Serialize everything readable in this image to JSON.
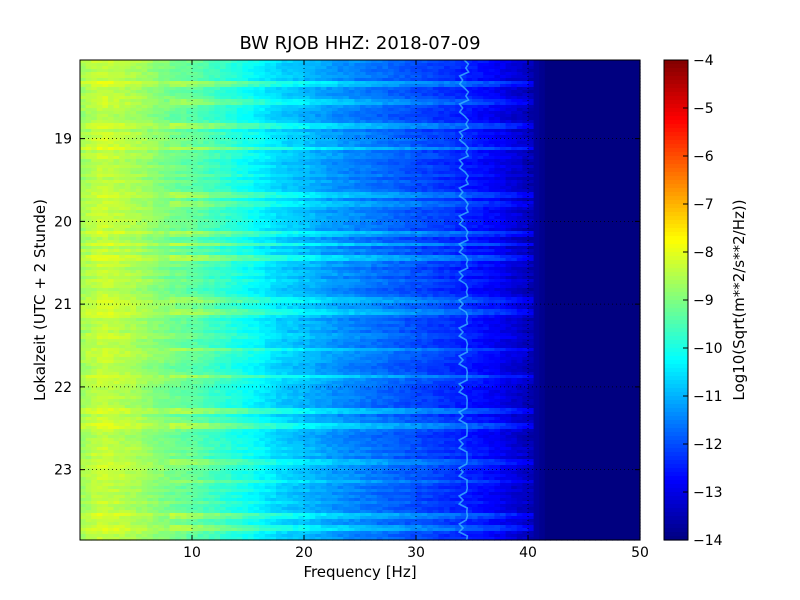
{
  "chart_data": {
    "type": "heatmap",
    "title": "BW RJOB HHZ: 2018-07-09",
    "xlabel": "Frequency [Hz]",
    "ylabel": "Lokalzeit (UTC + 2 Stunde)",
    "xlim": [
      0,
      50
    ],
    "ylim": [
      18.05,
      23.85
    ],
    "y_inverted": true,
    "x_ticks": [
      10,
      20,
      30,
      40,
      50
    ],
    "x_tick_labels": [
      "10",
      "20",
      "30",
      "40",
      "50"
    ],
    "y_ticks": [
      19,
      20,
      21,
      22,
      23
    ],
    "y_tick_labels": [
      "19",
      "20",
      "21",
      "22",
      "23"
    ],
    "grid": true,
    "colormap": "jet",
    "colorbar": {
      "label": "Log10(Sqrt(m**2/s**2/Hz))",
      "range": [
        -14,
        -4
      ],
      "ticks": [
        -4,
        -5,
        -6,
        -7,
        -8,
        -9,
        -10,
        -11,
        -12,
        -13,
        -14
      ],
      "tick_labels": [
        "−4",
        "−5",
        "−6",
        "−7",
        "−8",
        "−9",
        "−10",
        "−11",
        "−12",
        "−13",
        "−14"
      ]
    },
    "spectrum_profile": {
      "frequency_hz": [
        0,
        2,
        5,
        8,
        10,
        13,
        16,
        18,
        20,
        22,
        25,
        28,
        31,
        34,
        37,
        40,
        41,
        42,
        50
      ],
      "log10_amplitude": [
        -8.7,
        -8.3,
        -8.6,
        -9.1,
        -9.3,
        -9.8,
        -10.3,
        -10.7,
        -10.9,
        -11.2,
        -11.5,
        -11.8,
        -12.1,
        -12.4,
        -12.8,
        -13.4,
        -13.8,
        -14.0,
        -14.0
      ]
    },
    "tonal_line": {
      "frequency_hz": 34.3,
      "note": "wandering narrow spectral line near 34 Hz"
    },
    "broadband_bursts_local_hour": [
      18.35,
      18.55,
      18.85,
      19.12,
      19.68,
      19.8,
      20.15,
      20.28,
      20.45,
      20.95,
      21.1,
      21.55,
      21.88,
      22.3,
      22.48,
      22.9,
      23.15,
      23.55,
      23.7
    ]
  }
}
